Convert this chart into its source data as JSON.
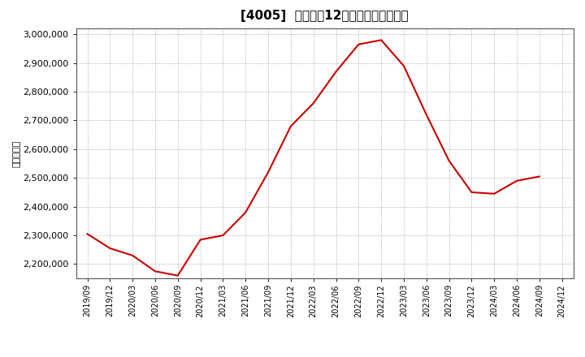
{
  "title": "[4005]  売上高の12か月移動合計の推移",
  "ylabel": "（百万円）",
  "line_color": "#cc0000",
  "background_color": "#ffffff",
  "plot_bg_color": "#ffffff",
  "grid_color": "#999999",
  "ylim": [
    2150000,
    3020000
  ],
  "yticks": [
    2200000,
    2300000,
    2400000,
    2500000,
    2600000,
    2700000,
    2800000,
    2900000,
    3000000
  ],
  "dates": [
    "2019/09",
    "2019/12",
    "2020/03",
    "2020/06",
    "2020/09",
    "2020/12",
    "2021/03",
    "2021/06",
    "2021/09",
    "2021/12",
    "2022/03",
    "2022/06",
    "2022/09",
    "2022/12",
    "2023/03",
    "2023/06",
    "2023/09",
    "2023/12",
    "2024/03",
    "2024/06",
    "2024/09",
    "2024/12"
  ],
  "values": [
    2305000,
    2255000,
    2230000,
    2175000,
    2160000,
    2285000,
    2300000,
    2380000,
    2520000,
    2680000,
    2760000,
    2870000,
    2965000,
    2980000,
    2890000,
    2720000,
    2560000,
    2450000,
    2445000,
    2490000,
    2505000,
    null
  ],
  "title_fontsize": 11,
  "ylabel_fontsize": 8,
  "tick_fontsize": 8,
  "xtick_fontsize": 7
}
